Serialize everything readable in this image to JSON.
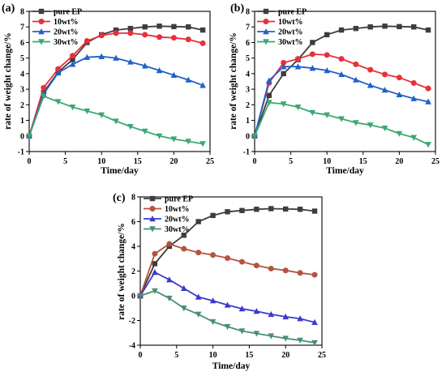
{
  "chart_data": [
    {
      "panel_label": "(a)",
      "type": "line",
      "xlabel": "Time/day",
      "ylabel": "rate of weight change/%",
      "xlim": [
        0,
        25
      ],
      "ylim": [
        -1,
        8
      ],
      "x_ticks": [
        0,
        5,
        10,
        15,
        20,
        25
      ],
      "y_ticks": [
        -1,
        0,
        1,
        2,
        3,
        4,
        5,
        6,
        7,
        8
      ],
      "legend_position": "top-left",
      "series": [
        {
          "name": "pure EP",
          "color": "#3d3d3d",
          "marker": "square",
          "x": [
            0,
            2,
            4,
            6,
            8,
            10,
            12,
            14,
            16,
            18,
            20,
            22,
            24
          ],
          "y": [
            0,
            2.8,
            4.1,
            4.9,
            6.0,
            6.5,
            6.8,
            6.9,
            7.0,
            7.05,
            7.02,
            7.0,
            6.8
          ]
        },
        {
          "name": "10wt%",
          "color": "#e8303a",
          "marker": "circle",
          "x": [
            0,
            2,
            4,
            6,
            8,
            10,
            12,
            14,
            16,
            18,
            20,
            22,
            24
          ],
          "y": [
            0,
            3.1,
            4.3,
            5.15,
            6.1,
            6.45,
            6.6,
            6.6,
            6.5,
            6.35,
            6.3,
            6.2,
            5.95
          ]
        },
        {
          "name": "20wt%",
          "color": "#2060c8",
          "marker": "triangle-up",
          "x": [
            0,
            2,
            4,
            6,
            8,
            10,
            12,
            14,
            16,
            18,
            20,
            22,
            24
          ],
          "y": [
            0,
            2.7,
            4.05,
            4.6,
            5.05,
            5.1,
            5.0,
            4.75,
            4.5,
            4.2,
            3.9,
            3.6,
            3.25
          ]
        },
        {
          "name": "30wt%",
          "color": "#3aa872",
          "marker": "triangle-down",
          "x": [
            0,
            2,
            4,
            6,
            8,
            10,
            12,
            14,
            16,
            18,
            20,
            22,
            24
          ],
          "y": [
            0,
            2.55,
            2.2,
            1.85,
            1.6,
            1.35,
            0.95,
            0.6,
            0.3,
            0.0,
            -0.2,
            -0.35,
            -0.5
          ]
        }
      ]
    },
    {
      "panel_label": "(b)",
      "type": "line",
      "xlabel": "Time/day",
      "ylabel": "rate of weight change/%",
      "xlim": [
        0,
        25
      ],
      "ylim": [
        -1,
        8
      ],
      "x_ticks": [
        0,
        5,
        10,
        15,
        20,
        25
      ],
      "y_ticks": [
        -1,
        0,
        1,
        2,
        3,
        4,
        5,
        6,
        7,
        8
      ],
      "legend_position": "top-left",
      "series": [
        {
          "name": "pure EP",
          "color": "#3d3d3d",
          "marker": "square",
          "x": [
            0,
            2,
            4,
            6,
            8,
            10,
            12,
            14,
            16,
            18,
            20,
            22,
            24
          ],
          "y": [
            0,
            2.6,
            4.0,
            4.9,
            6.0,
            6.5,
            6.8,
            6.9,
            7.0,
            7.05,
            7.02,
            7.0,
            6.8
          ]
        },
        {
          "name": "10wt%",
          "color": "#e8303a",
          "marker": "circle",
          "x": [
            0,
            2,
            4,
            6,
            8,
            10,
            12,
            14,
            16,
            18,
            20,
            22,
            24
          ],
          "y": [
            0,
            3.4,
            4.7,
            4.95,
            5.25,
            5.2,
            4.95,
            4.6,
            4.25,
            3.95,
            3.75,
            3.4,
            3.05
          ]
        },
        {
          "name": "20wt%",
          "color": "#2060c8",
          "marker": "triangle-up",
          "x": [
            0,
            2,
            4,
            6,
            8,
            10,
            12,
            14,
            16,
            18,
            20,
            22,
            24
          ],
          "y": [
            0,
            3.55,
            4.45,
            4.45,
            4.35,
            4.2,
            3.95,
            3.6,
            3.25,
            2.95,
            2.65,
            2.4,
            2.2
          ]
        },
        {
          "name": "30wt%",
          "color": "#3aa872",
          "marker": "triangle-down",
          "x": [
            0,
            2,
            4,
            6,
            8,
            10,
            12,
            14,
            16,
            18,
            20,
            22,
            24
          ],
          "y": [
            0,
            2.15,
            2.05,
            1.85,
            1.5,
            1.35,
            1.1,
            0.85,
            0.7,
            0.5,
            0.15,
            -0.1,
            -0.55
          ]
        }
      ]
    },
    {
      "panel_label": "(c)",
      "type": "line",
      "xlabel": "Time/day",
      "ylabel": "rate of weight change/%",
      "xlim": [
        0,
        25
      ],
      "ylim": [
        -4,
        8
      ],
      "x_ticks": [
        0,
        5,
        10,
        15,
        20,
        25
      ],
      "y_ticks": [
        -4,
        -2,
        0,
        2,
        4,
        6,
        8
      ],
      "legend_position": "top-left",
      "series": [
        {
          "name": "pure EP",
          "color": "#3d3d3d",
          "marker": "square",
          "x": [
            0,
            2,
            4,
            6,
            8,
            10,
            12,
            14,
            16,
            18,
            20,
            22,
            24
          ],
          "y": [
            0,
            2.6,
            4.0,
            4.9,
            6.0,
            6.5,
            6.8,
            6.9,
            7.0,
            7.05,
            7.02,
            7.0,
            6.85
          ]
        },
        {
          "name": "10wt%",
          "color": "#b5533e",
          "marker": "circle",
          "x": [
            0,
            2,
            4,
            6,
            8,
            10,
            12,
            14,
            16,
            18,
            20,
            22,
            24
          ],
          "y": [
            0,
            3.4,
            4.2,
            3.8,
            3.5,
            3.3,
            3.05,
            2.75,
            2.45,
            2.2,
            2.05,
            1.85,
            1.7
          ]
        },
        {
          "name": "20wt%",
          "color": "#3a3acd",
          "marker": "triangle-up",
          "x": [
            0,
            2,
            4,
            6,
            8,
            10,
            12,
            14,
            16,
            18,
            20,
            22,
            24
          ],
          "y": [
            0,
            1.9,
            1.3,
            0.6,
            -0.1,
            -0.4,
            -0.75,
            -1.05,
            -1.25,
            -1.5,
            -1.7,
            -1.85,
            -2.15
          ]
        },
        {
          "name": "30wt%",
          "color": "#4b8f6e",
          "marker": "triangle-down",
          "x": [
            0,
            2,
            4,
            6,
            8,
            10,
            12,
            14,
            16,
            18,
            20,
            22,
            24
          ],
          "y": [
            0,
            0.4,
            -0.2,
            -1.0,
            -1.5,
            -2.1,
            -2.5,
            -2.85,
            -3.05,
            -3.25,
            -3.45,
            -3.6,
            -3.8
          ]
        }
      ]
    }
  ]
}
